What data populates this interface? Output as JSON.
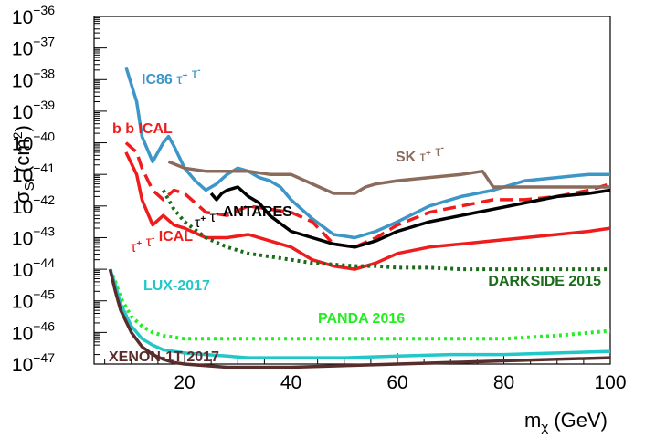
{
  "chart_data": {
    "type": "line",
    "title": "",
    "xlabel": "mχ (GeV)",
    "ylabel": "σSI (cm²)",
    "xlim": [
      3,
      100
    ],
    "ylim_log10": [
      -47,
      -36
    ],
    "x_ticks": [
      20,
      40,
      60,
      80,
      100
    ],
    "y_tick_exponents": [
      -47,
      -46,
      -45,
      -44,
      -43,
      -42,
      -41,
      -40,
      -39,
      -38,
      -37,
      -36
    ],
    "y_tick_base": "10",
    "grid": false,
    "series": [
      {
        "name": "IC86 τ+ τ-",
        "label_text": "IC86",
        "color": "#3c96c8",
        "dash": "solid",
        "width": 3.5,
        "x": [
          9,
          11,
          12,
          14,
          15,
          16,
          17,
          18,
          20,
          22,
          24,
          26,
          28,
          30,
          32,
          34,
          36,
          38,
          40,
          44,
          48,
          52,
          56,
          60,
          66,
          72,
          78,
          84,
          90,
          96,
          100
        ],
        "y": [
          -37.6,
          -38.7,
          -39.8,
          -40.6,
          -40.3,
          -40.0,
          -39.8,
          -40.1,
          -40.8,
          -41.2,
          -41.5,
          -41.3,
          -41.0,
          -40.8,
          -40.9,
          -41.1,
          -41.2,
          -41.4,
          -41.8,
          -42.4,
          -42.9,
          -43.0,
          -42.8,
          -42.5,
          -42.0,
          -41.7,
          -41.5,
          -41.2,
          -41.1,
          -41.0,
          -41.0
        ]
      },
      {
        "name": "b b ICAL",
        "label_text": "b b ICAL",
        "color": "#ee1c1c",
        "dash": "dashed",
        "width": 3.5,
        "x": [
          9,
          11,
          12,
          14,
          16,
          18,
          20,
          24,
          28,
          32,
          36,
          40,
          44,
          48,
          52,
          56,
          60,
          66,
          72,
          78,
          84,
          90,
          96,
          100
        ],
        "y": [
          -40.0,
          -40.3,
          -40.8,
          -41.5,
          -41.8,
          -41.5,
          -41.6,
          -42.2,
          -42.3,
          -42.0,
          -42.1,
          -42.2,
          -42.5,
          -43.2,
          -43.3,
          -43.0,
          -42.6,
          -42.2,
          -42.0,
          -41.8,
          -41.8,
          -41.7,
          -41.5,
          -41.3
        ]
      },
      {
        "name": "τ+ τ- ICAL",
        "label_text": "ICAL",
        "color": "#ee1c1c",
        "dash": "solid",
        "width": 3.5,
        "x": [
          9,
          11,
          12,
          14,
          16,
          18,
          20,
          24,
          28,
          32,
          36,
          40,
          44,
          48,
          52,
          56,
          60,
          66,
          72,
          78,
          84,
          90,
          96,
          100
        ],
        "y": [
          -40.3,
          -41.0,
          -41.8,
          -42.6,
          -42.3,
          -42.6,
          -42.7,
          -43.0,
          -43.0,
          -42.9,
          -43.1,
          -43.3,
          -43.7,
          -43.9,
          -44.0,
          -43.8,
          -43.5,
          -43.3,
          -43.2,
          -43.1,
          -43.0,
          -42.9,
          -42.8,
          -42.7
        ]
      },
      {
        "name": "τ+ τ- ANTARES",
        "label_text": "ANTARES",
        "color": "#000000",
        "dash": "solid",
        "width": 3.5,
        "x": [
          25,
          26,
          27,
          28,
          30,
          32,
          34,
          36,
          40,
          44,
          48,
          52,
          56,
          60,
          66,
          72,
          78,
          84,
          90,
          96,
          100
        ],
        "y": [
          -41.6,
          -41.8,
          -41.6,
          -41.5,
          -41.4,
          -41.7,
          -41.9,
          -42.3,
          -42.8,
          -43.0,
          -43.2,
          -43.3,
          -43.1,
          -42.8,
          -42.5,
          -42.3,
          -42.1,
          -41.9,
          -41.7,
          -41.6,
          -41.5
        ]
      },
      {
        "name": "SK τ+ τ-",
        "label_text": "SK",
        "color": "#8b6b5b",
        "dash": "solid",
        "width": 3.5,
        "x": [
          17,
          20,
          24,
          28,
          32,
          36,
          40,
          44,
          48,
          52,
          54,
          56,
          60,
          66,
          72,
          76,
          78,
          84,
          90,
          96,
          100
        ],
        "y": [
          -40.6,
          -40.8,
          -40.9,
          -40.9,
          -40.9,
          -41.0,
          -41.0,
          -41.3,
          -41.6,
          -41.6,
          -41.4,
          -41.3,
          -41.2,
          -41.1,
          -41.0,
          -40.9,
          -41.4,
          -41.4,
          -41.4,
          -41.4,
          -41.4
        ]
      },
      {
        "name": "DARKSIDE 2015",
        "label_text": "DARKSIDE 2015",
        "color": "#1a6b1a",
        "dash": "dotted",
        "width": 4,
        "x": [
          16,
          18,
          20,
          24,
          28,
          32,
          36,
          40,
          44,
          48,
          52,
          56,
          60,
          66,
          72,
          78,
          84,
          90,
          96,
          100
        ],
        "y": [
          -41.5,
          -42.1,
          -42.5,
          -43.0,
          -43.3,
          -43.5,
          -43.6,
          -43.7,
          -43.8,
          -43.85,
          -43.9,
          -43.9,
          -43.95,
          -43.95,
          -44.0,
          -44.0,
          -44.0,
          -44.0,
          -44.0,
          -44.0
        ]
      },
      {
        "name": "PANDA 2016",
        "label_text": "PANDA 2016",
        "color": "#22ee22",
        "dash": "dotted",
        "width": 4,
        "x": [
          6,
          7,
          8,
          10,
          12,
          14,
          16,
          18,
          20,
          24,
          28,
          32,
          40,
          50,
          60,
          70,
          80,
          90,
          100
        ],
        "y": [
          -44.0,
          -44.4,
          -44.9,
          -45.5,
          -45.8,
          -46.0,
          -46.1,
          -46.15,
          -46.2,
          -46.2,
          -46.2,
          -46.2,
          -46.2,
          -46.2,
          -46.2,
          -46.2,
          -46.2,
          -46.1,
          -45.95
        ]
      },
      {
        "name": "LUX-2017",
        "label_text": "LUX-2017",
        "color": "#22c8c8",
        "dash": "solid",
        "width": 3.5,
        "x": [
          6,
          7,
          8,
          10,
          12,
          14,
          16,
          18,
          20,
          24,
          28,
          32,
          40,
          50,
          60,
          70,
          80,
          90,
          100
        ],
        "y": [
          -44.0,
          -44.5,
          -45.1,
          -45.8,
          -46.2,
          -46.4,
          -46.55,
          -46.6,
          -46.65,
          -46.7,
          -46.75,
          -46.8,
          -46.8,
          -46.8,
          -46.75,
          -46.7,
          -46.7,
          -46.65,
          -46.6
        ]
      },
      {
        "name": "XENON-1T 2017",
        "label_text": "XENON-1T 2017",
        "color": "#5a2d2d",
        "dash": "solid",
        "width": 3.5,
        "x": [
          6,
          7,
          8,
          10,
          12,
          14,
          16,
          18,
          20,
          24,
          28,
          32,
          40,
          50,
          60,
          70,
          80,
          90,
          100
        ],
        "y": [
          -44.0,
          -44.7,
          -45.3,
          -46.0,
          -46.45,
          -46.7,
          -46.85,
          -46.95,
          -47.0,
          -47.05,
          -47.1,
          -47.1,
          -47.1,
          -47.05,
          -47.0,
          -46.95,
          -46.9,
          -46.85,
          -46.8
        ]
      }
    ],
    "annotations": [
      {
        "text": "IC86",
        "ion": "τ+ τ-",
        "color": "#3c96c8"
      },
      {
        "text": "b b ICAL",
        "color": "#ee1c1c"
      },
      {
        "text": "SK",
        "ion": "τ+ τ-",
        "color": "#8b6b5b"
      },
      {
        "text": "ANTARES",
        "ion": "τ+ τ-",
        "color": "#000000"
      },
      {
        "text": "ICAL",
        "ion": "τ+ τ-",
        "color": "#ee1c1c"
      },
      {
        "text": "DARKSIDE 2015",
        "color": "#1a6b1a"
      },
      {
        "text": "LUX-2017",
        "color": "#22c8c8"
      },
      {
        "text": "PANDA 2016",
        "color": "#22ee22"
      },
      {
        "text": "XENON-1T 2017",
        "color": "#5a2d2d"
      }
    ]
  }
}
